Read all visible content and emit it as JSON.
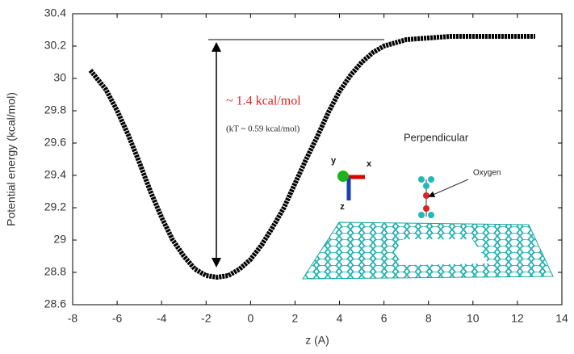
{
  "chart_data": {
    "type": "line",
    "xlabel": "z (A)",
    "ylabel": "Potential energy (kcal/mol)",
    "xlim": [
      -8,
      14
    ],
    "ylim": [
      28.6,
      30.4
    ],
    "xticks": [
      -8,
      -6,
      -4,
      -2,
      0,
      2,
      4,
      6,
      8,
      10,
      12,
      14
    ],
    "yticks": [
      28.6,
      28.8,
      29,
      29.2,
      29.4,
      29.6,
      29.8,
      30,
      30.2,
      30.4
    ],
    "annotations": [
      "~ 1.4 kcal/mol",
      "(kT ~ 0.59 kcal/mol)",
      "Perpendicular",
      "Oxygen",
      "x",
      "y",
      "z"
    ],
    "series": [
      {
        "color": "#000000",
        "x": [
          -7.2,
          -6.5,
          -6,
          -5.5,
          -5,
          -4.5,
          -4,
          -3.5,
          -3,
          -2.5,
          -2,
          -1.5,
          -1,
          -0.5,
          0,
          0.5,
          1,
          1.5,
          2,
          2.5,
          3,
          3.5,
          4,
          4.5,
          5,
          5.5,
          6,
          7,
          8,
          9,
          10,
          11,
          12,
          12.8
        ],
        "values": [
          30.05,
          29.93,
          29.8,
          29.65,
          29.48,
          29.3,
          29.14,
          29.0,
          28.9,
          28.82,
          28.78,
          28.77,
          28.78,
          28.82,
          28.88,
          28.97,
          29.08,
          29.2,
          29.35,
          29.5,
          29.64,
          29.79,
          29.92,
          30.02,
          30.1,
          30.16,
          30.2,
          30.24,
          30.25,
          30.26,
          30.26,
          30.26,
          30.26,
          30.26
        ]
      }
    ]
  }
}
